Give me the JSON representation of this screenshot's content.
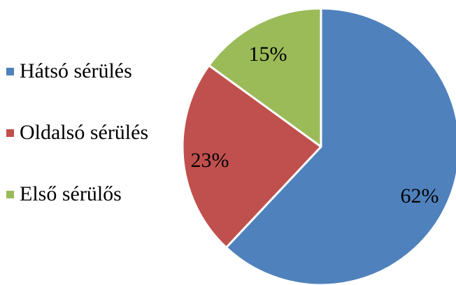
{
  "chart_data": {
    "type": "pie",
    "categories": [
      "Hátsó sérülés",
      "Oldalsó sérülés",
      "Első sérülős"
    ],
    "values": [
      62,
      23,
      15
    ],
    "data_labels": [
      "62%",
      "23%",
      "15%"
    ],
    "colors": [
      "#4F81BD",
      "#C0504D",
      "#9BBB59"
    ],
    "slice_border_color": "#FFFFFF",
    "legend_position": "left",
    "title": ""
  }
}
